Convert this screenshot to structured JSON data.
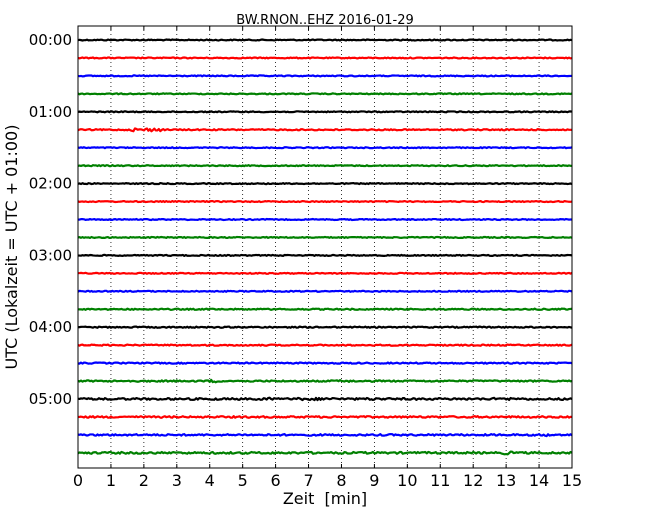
{
  "chart_data": {
    "type": "line",
    "title": "BW.RNON..EHZ 2016-01-29",
    "xlabel": "Zeit  [min]",
    "ylabel": "UTC (Lokalzeit = UTC + 01:00)",
    "xlim": [
      0,
      15
    ],
    "x_ticks": [
      0,
      1,
      2,
      3,
      4,
      5,
      6,
      7,
      8,
      9,
      10,
      11,
      12,
      13,
      14,
      15
    ],
    "x_tick_labels": [
      "0",
      "1",
      "2",
      "3",
      "4",
      "5",
      "6",
      "7",
      "8",
      "9",
      "10",
      "11",
      "12",
      "13",
      "14",
      "15"
    ],
    "y_tick_labels": [
      "00:00",
      "01:00",
      "02:00",
      "03:00",
      "04:00",
      "05:00"
    ],
    "grid": {
      "vertical_dotted": true
    },
    "trace_colors": [
      "#000000",
      "#ff0000",
      "#0000ff",
      "#008000"
    ],
    "series": [
      {
        "start": "00:00",
        "color": "#000000",
        "amplitude": 0.5
      },
      {
        "start": "00:15",
        "color": "#ff0000",
        "amplitude": 0.5
      },
      {
        "start": "00:30",
        "color": "#0000ff",
        "amplitude": 0.5
      },
      {
        "start": "00:45",
        "color": "#008000",
        "amplitude": 0.5
      },
      {
        "start": "01:00",
        "color": "#000000",
        "amplitude": 0.5
      },
      {
        "start": "01:15",
        "color": "#ff0000",
        "amplitude": 0.6,
        "events": [
          [
            1.6,
            2.6,
            1.6
          ]
        ]
      },
      {
        "start": "01:30",
        "color": "#0000ff",
        "amplitude": 0.5
      },
      {
        "start": "01:45",
        "color": "#008000",
        "amplitude": 0.5
      },
      {
        "start": "02:00",
        "color": "#000000",
        "amplitude": 0.5
      },
      {
        "start": "02:15",
        "color": "#ff0000",
        "amplitude": 0.5
      },
      {
        "start": "02:30",
        "color": "#0000ff",
        "amplitude": 0.5
      },
      {
        "start": "02:45",
        "color": "#008000",
        "amplitude": 0.5
      },
      {
        "start": "03:00",
        "color": "#000000",
        "amplitude": 0.5
      },
      {
        "start": "03:15",
        "color": "#ff0000",
        "amplitude": 0.5
      },
      {
        "start": "03:30",
        "color": "#0000ff",
        "amplitude": 0.5
      },
      {
        "start": "03:45",
        "color": "#008000",
        "amplitude": 0.6
      },
      {
        "start": "04:00",
        "color": "#000000",
        "amplitude": 0.6
      },
      {
        "start": "04:15",
        "color": "#ff0000",
        "amplitude": 0.6
      },
      {
        "start": "04:30",
        "color": "#0000ff",
        "amplitude": 0.6
      },
      {
        "start": "04:45",
        "color": "#008000",
        "amplitude": 0.7,
        "events": [
          [
            4.0,
            4.3,
            1.4
          ],
          [
            7.8,
            8.3,
            1.0
          ]
        ]
      },
      {
        "start": "05:00",
        "color": "#000000",
        "amplitude": 0.9,
        "events": [
          [
            5.5,
            5.9,
            1.4
          ],
          [
            6.6,
            7.8,
            1.2
          ],
          [
            8.6,
            9.2,
            1.2
          ],
          [
            12.6,
            13.4,
            1.2
          ]
        ]
      },
      {
        "start": "05:15",
        "color": "#ff0000",
        "amplitude": 0.8
      },
      {
        "start": "05:30",
        "color": "#0000ff",
        "amplitude": 0.8,
        "events": [
          [
            14.0,
            14.3,
            1.3
          ]
        ]
      },
      {
        "start": "05:45",
        "color": "#008000",
        "amplitude": 0.9,
        "events": [
          [
            12.9,
            13.2,
            1.5
          ]
        ]
      }
    ]
  }
}
